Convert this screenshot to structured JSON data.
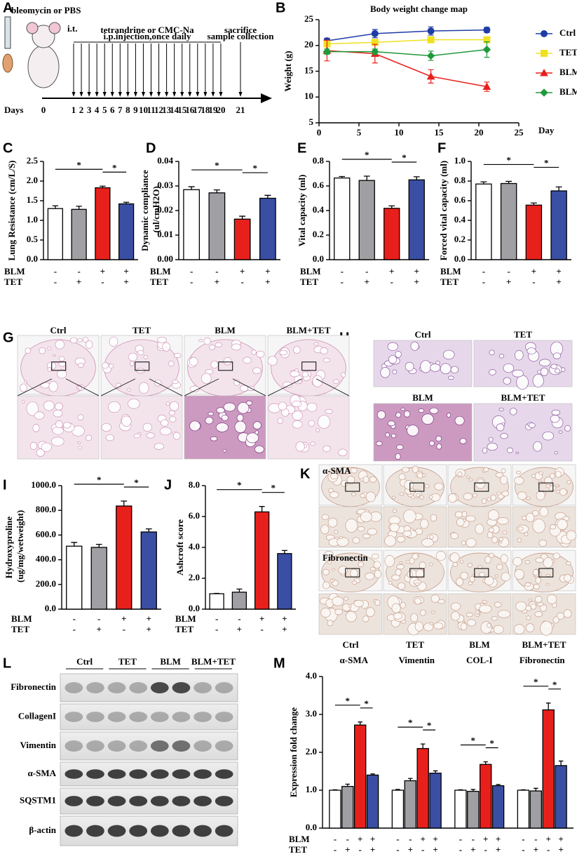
{
  "panel_labels": [
    "A",
    "B",
    "C",
    "D",
    "E",
    "F",
    "G",
    "H",
    "I",
    "J",
    "K",
    "L",
    "M"
  ],
  "schematic": {
    "injection": "bleomycin or PBS",
    "route": "i.t.",
    "treatment": "tetrandrine or CMC-Na",
    "treatment_note": "i.p.injection,once daily",
    "end": "sacrifice",
    "end_note": "sample collection",
    "axis_label": "Days",
    "days": [
      0,
      1,
      2,
      3,
      4,
      5,
      6,
      7,
      8,
      9,
      10,
      11,
      12,
      13,
      14,
      15,
      16,
      17,
      18,
      19,
      20,
      21
    ]
  },
  "histology_G": {
    "labels": [
      "Ctrl",
      "TET",
      "BLM",
      "BLM+TET"
    ]
  },
  "histology_H": {
    "labels": [
      "Ctrl",
      "TET",
      "BLM",
      "BLM+TET"
    ]
  },
  "histology_K": {
    "row_labels": [
      "α-SMA",
      "Fibronectin"
    ],
    "labels": [
      "Ctrl",
      "TET",
      "BLM",
      "BLM+TET"
    ]
  },
  "blot": {
    "groups": [
      "Ctrl",
      "TET",
      "BLM",
      "BLM+TET"
    ],
    "proteins": [
      "Fibronectin",
      "CollagenI",
      "Vimentin",
      "α-SMA",
      "SQSTM1",
      "β-actin"
    ]
  },
  "chart_data": [
    {
      "type": "line",
      "title": "Body weight change map",
      "ylabel": "Weight (g)",
      "xlabel": "Day",
      "x": [
        1,
        7,
        14,
        21
      ],
      "xlim": [
        0,
        25
      ],
      "xticks": [
        0,
        5,
        10,
        15,
        20,
        25
      ],
      "ylim": [
        5,
        25
      ],
      "yticks": [
        5,
        10,
        15,
        20,
        25
      ],
      "legend": "right",
      "series": [
        {
          "name": "Ctrl",
          "color": "#1f3ca6",
          "marker": "circle",
          "values": [
            20.9,
            22.3,
            22.8,
            23.0
          ],
          "errors": [
            0.5,
            0.8,
            0.8,
            0.5
          ]
        },
        {
          "name": "TET",
          "color": "#f0e020",
          "marker": "square",
          "values": [
            20.3,
            20.6,
            21.1,
            21.1
          ],
          "errors": [
            0.4,
            0.5,
            0.5,
            0.5
          ]
        },
        {
          "name": "BLM",
          "color": "#e8201c",
          "marker": "triangle",
          "values": [
            19.0,
            18.4,
            14.0,
            12.0
          ],
          "errors": [
            2.0,
            1.8,
            1.3,
            0.9
          ]
        },
        {
          "name": "BLM+TET",
          "color": "#1f9a3a",
          "marker": "diamond",
          "values": [
            18.8,
            18.8,
            18.0,
            19.2
          ],
          "errors": [
            0.5,
            0.5,
            0.9,
            1.5
          ]
        }
      ]
    },
    {
      "type": "bar",
      "ylabel": "Lung Resistance (cm/L/S)",
      "ylim": [
        0,
        2.5
      ],
      "yticks": [
        {
          "value": 0,
          "label": "0.0"
        },
        0.5,
        {
          "value": 1,
          "label": "1.0"
        },
        1.5,
        {
          "value": 2,
          "label": "2.0"
        },
        2.5
      ],
      "values": [
        1.3,
        1.28,
        1.83,
        1.42
      ],
      "errors": [
        0.07,
        0.08,
        0.04,
        0.04
      ],
      "colors": [
        "#ffffff",
        "#a0a0a4",
        "#e8201c",
        "#3a4ea3"
      ],
      "condition_labels": [
        "BLM",
        "TET"
      ],
      "conditions": [
        [
          "-",
          "-",
          "+",
          "+"
        ],
        [
          "-",
          "+",
          "-",
          "+"
        ]
      ],
      "significance": [
        {
          "pair": [
            0,
            2
          ],
          "label": "*"
        },
        {
          "pair": [
            2,
            3
          ],
          "label": "*"
        }
      ]
    },
    {
      "type": "bar",
      "ylabel": "Dynamic compliance (ul/cmH2O)",
      "ylim": [
        0,
        0.04
      ],
      "yticks": [
        {
          "value": 0,
          "label": "0.00"
        },
        0.01,
        0.02,
        0.03,
        0.04
      ],
      "values": [
        0.0285,
        0.0272,
        0.0165,
        0.025
      ],
      "errors": [
        0.0012,
        0.0012,
        0.0012,
        0.0012
      ],
      "colors": [
        "#ffffff",
        "#a0a0a4",
        "#e8201c",
        "#3a4ea3"
      ],
      "condition_labels": [
        "BLM",
        "TET"
      ],
      "conditions": [
        [
          "-",
          "-",
          "+",
          "+"
        ],
        [
          "-",
          "+",
          "-",
          "+"
        ]
      ],
      "significance": [
        {
          "pair": [
            0,
            2
          ],
          "label": "*"
        },
        {
          "pair": [
            2,
            3
          ],
          "label": "*"
        }
      ]
    },
    {
      "type": "bar",
      "ylabel": "Vital capacity (ml)",
      "ylim": [
        0,
        0.8
      ],
      "yticks": [
        {
          "value": 0,
          "label": "0.0"
        },
        0.2,
        0.4,
        0.6,
        0.8
      ],
      "values": [
        0.665,
        0.645,
        0.418,
        0.65
      ],
      "errors": [
        0.012,
        0.035,
        0.02,
        0.025
      ],
      "colors": [
        "#ffffff",
        "#a0a0a4",
        "#e8201c",
        "#3a4ea3"
      ],
      "condition_labels": [
        "BLM",
        "TET"
      ],
      "conditions": [
        [
          "-",
          "-",
          "+",
          "+"
        ],
        [
          "-",
          "+",
          "-",
          "+"
        ]
      ],
      "significance": [
        {
          "pair": [
            0,
            2
          ],
          "label": "*"
        },
        {
          "pair": [
            2,
            3
          ],
          "label": "*"
        }
      ]
    },
    {
      "type": "bar",
      "ylabel": "Forced vital capacity (ml)",
      "ylim": [
        0,
        1.0
      ],
      "yticks": [
        {
          "value": 0,
          "label": "0.0"
        },
        0.2,
        0.4,
        0.6,
        0.8,
        {
          "value": 1,
          "label": "1.0"
        }
      ],
      "values": [
        0.77,
        0.775,
        0.555,
        0.7
      ],
      "errors": [
        0.022,
        0.022,
        0.022,
        0.04
      ],
      "colors": [
        "#ffffff",
        "#a0a0a4",
        "#e8201c",
        "#3a4ea3"
      ],
      "condition_labels": [
        "BLM",
        "TET"
      ],
      "conditions": [
        [
          "-",
          "-",
          "+",
          "+"
        ],
        [
          "-",
          "+",
          "-",
          "+"
        ]
      ],
      "significance": [
        {
          "pair": [
            0,
            2
          ],
          "label": "*"
        },
        {
          "pair": [
            2,
            3
          ],
          "label": "*"
        }
      ]
    },
    {
      "type": "bar",
      "ylabel": "Hydroxyproline (ug/mg/wetweight)",
      "ylim": [
        0,
        1000
      ],
      "yticks": [
        {
          "value": 0,
          "label": "0.0"
        },
        {
          "value": 200,
          "label": "200.0"
        },
        {
          "value": 400,
          "label": "400.0"
        },
        {
          "value": 600,
          "label": "600.0"
        },
        {
          "value": 800,
          "label": "800.0"
        },
        {
          "value": 1000,
          "label": "1000.0"
        }
      ],
      "values": [
        510,
        500,
        835,
        625
      ],
      "errors": [
        30,
        25,
        40,
        25
      ],
      "colors": [
        "#ffffff",
        "#a0a0a4",
        "#e8201c",
        "#3a4ea3"
      ],
      "condition_labels": [
        "BLM",
        "TET"
      ],
      "conditions": [
        [
          "-",
          "-",
          "+",
          "+"
        ],
        [
          "-",
          "+",
          "-",
          "+"
        ]
      ],
      "significance": [
        {
          "pair": [
            0,
            2
          ],
          "label": "*"
        },
        {
          "pair": [
            2,
            3
          ],
          "label": "*"
        }
      ]
    },
    {
      "type": "bar",
      "ylabel": "Ashcroft score",
      "ylim": [
        0,
        8
      ],
      "yticks": [
        {
          "value": 0,
          "label": "0.0"
        },
        {
          "value": 2,
          "label": "2.0"
        },
        {
          "value": 4,
          "label": "4.0"
        },
        {
          "value": 6,
          "label": "6.0"
        },
        {
          "value": 8,
          "label": "8.0"
        }
      ],
      "values": [
        1.0,
        1.1,
        6.3,
        3.6
      ],
      "errors": [
        0.02,
        0.2,
        0.35,
        0.2
      ],
      "colors": [
        "#ffffff",
        "#a0a0a4",
        "#e8201c",
        "#3a4ea3"
      ],
      "condition_labels": [
        "BLM",
        "TET"
      ],
      "conditions": [
        [
          "-",
          "-",
          "+",
          "+"
        ],
        [
          "-",
          "+",
          "-",
          "+"
        ]
      ],
      "significance": [
        {
          "pair": [
            0,
            2
          ],
          "label": "*"
        },
        {
          "pair": [
            2,
            3
          ],
          "label": "*"
        }
      ]
    },
    {
      "type": "grouped_bar",
      "ylabel": "Expression fold change",
      "categories": [
        "α-SMA",
        "Vimentin",
        "COL-I",
        "Fibronectin"
      ],
      "ylim": [
        0,
        4
      ],
      "yticks": [
        {
          "value": 0,
          "label": "0.0"
        },
        {
          "value": 1,
          "label": "1.0"
        },
        {
          "value": 2,
          "label": "2.0"
        },
        {
          "value": 3,
          "label": "3.0"
        },
        {
          "value": 4,
          "label": "4.0"
        }
      ],
      "series": [
        {
          "color": "#ffffff",
          "values": [
            1.0,
            1.0,
            1.0,
            1.0
          ],
          "errors": [
            0.01,
            0.02,
            0.01,
            0.01
          ]
        },
        {
          "color": "#a0a0a4",
          "values": [
            1.1,
            1.25,
            0.97,
            0.98
          ],
          "errors": [
            0.06,
            0.06,
            0.05,
            0.07
          ]
        },
        {
          "color": "#e8201c",
          "values": [
            2.72,
            2.1,
            1.68,
            3.12
          ],
          "errors": [
            0.08,
            0.12,
            0.07,
            0.18
          ]
        },
        {
          "color": "#3a4ea3",
          "values": [
            1.4,
            1.45,
            1.12,
            1.65
          ],
          "errors": [
            0.03,
            0.06,
            0.03,
            0.12
          ]
        }
      ],
      "condition_labels": [
        "BLM",
        "TET"
      ],
      "conditions": [
        [
          "-",
          "-",
          "+",
          "+"
        ],
        [
          "-",
          "+",
          "-",
          "+"
        ]
      ],
      "significance": [
        {
          "pair": [
            0,
            2
          ],
          "label": "*"
        },
        {
          "pair": [
            2,
            3
          ],
          "label": "*"
        }
      ]
    }
  ]
}
